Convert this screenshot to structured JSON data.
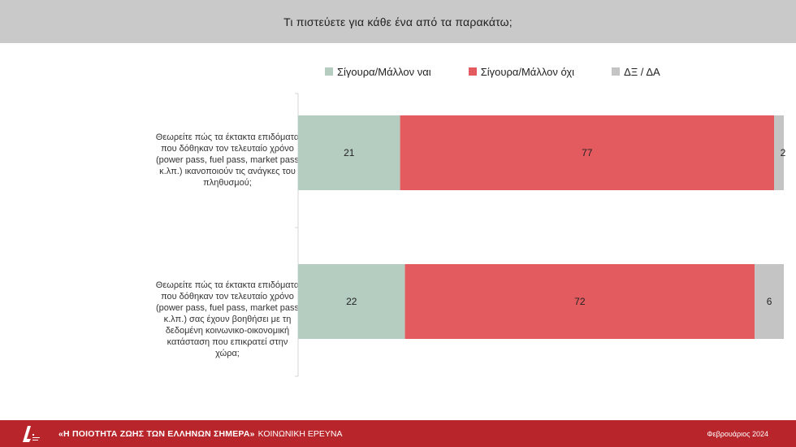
{
  "header": {
    "title": "Τι πιστεύετε για κάθε ένα από τα παρακάτω;"
  },
  "chart_data": {
    "type": "bar",
    "orientation": "horizontal",
    "stacked": true,
    "xlim": [
      0,
      100
    ],
    "legend_position": "top",
    "categories": [
      "Θεωρείτε πώς τα έκτακτα επιδόματα που δόθηκαν τον τελευταίο χρόνο (power pass, fuel pass, market pass κ.λπ.) ικανοποιούν τις ανάγκες του πληθυσμού;",
      "Θεωρείτε πώς τα έκτακτα επιδόματα που δόθηκαν τον τελευταίο χρόνο (power pass, fuel pass, market pass κ.λπ.) σας έχουν βοηθήσει με τη δεδομένη κοινωνικο-οικονομική κατάσταση που επικρατεί στην χώρα;"
    ],
    "series": [
      {
        "name": "Σίγουρα/Μάλλον ναι",
        "color": "#b5ccc0",
        "values": [
          21,
          22
        ]
      },
      {
        "name": "Σίγουρα/Μάλλον όχι",
        "color": "#e45b5f",
        "values": [
          77,
          72
        ]
      },
      {
        "name": "ΔΞ / ΔΑ",
        "color": "#c4c4c4",
        "values": [
          2,
          6
        ]
      }
    ]
  },
  "footer": {
    "title": "«Η ΠΟΙΟΤΗΤΑ ΖΩΗΣ ΤΩΝ ΕΛΛΗΝΩΝ ΣΗΜΕΡΑ»",
    "subtitle": "ΚΟΙΝΩΝΙΚΗ ΕΡΕΥΝΑ",
    "date": "Φεβρουάριος 2024",
    "logo_icon": "brand-logo-icon"
  }
}
